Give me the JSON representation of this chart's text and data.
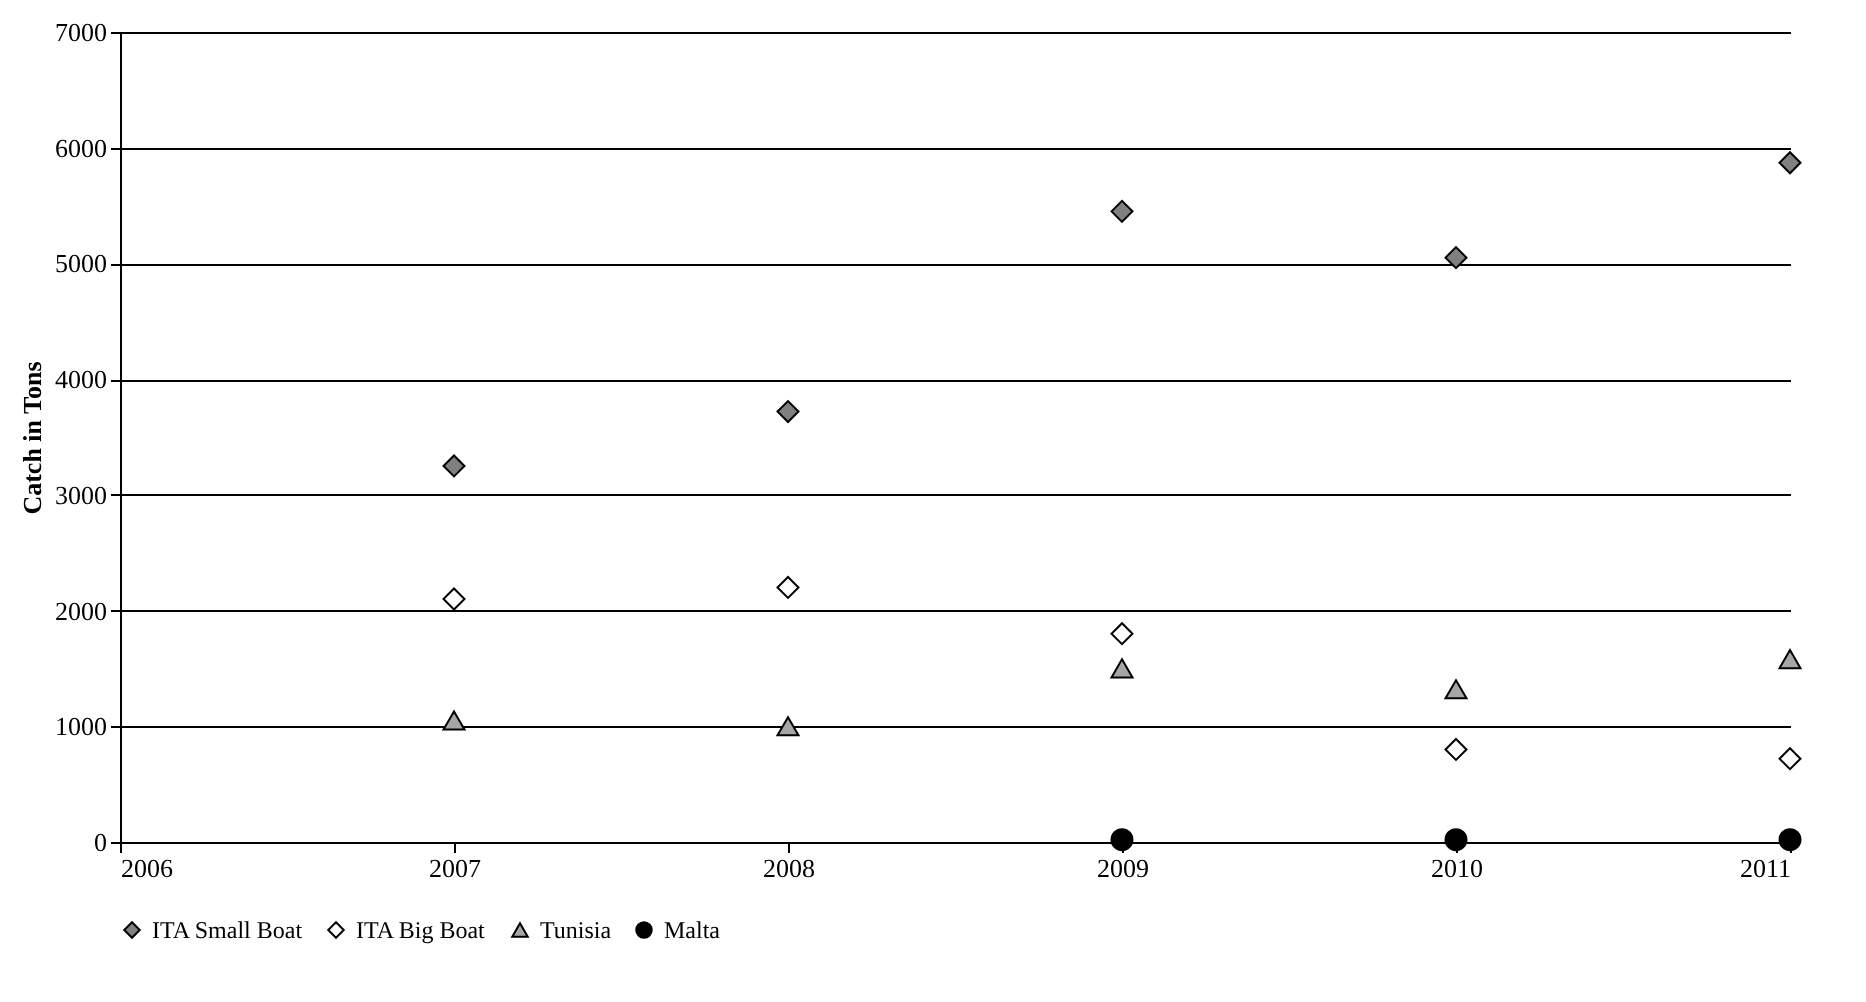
{
  "chart_data": {
    "type": "scatter",
    "ylabel": "Catch in Tons",
    "x": [
      2007,
      2008,
      2009,
      2010,
      2011
    ],
    "series": [
      {
        "name": "ITA Small Boat",
        "color": "#808080",
        "marker": "diamond",
        "values": [
          3250,
          3720,
          5450,
          5050,
          5870
        ]
      },
      {
        "name": "ITA Big Boat",
        "color": "#ffffff",
        "marker": "diamond",
        "values": [
          2100,
          2200,
          1800,
          800,
          720
        ]
      },
      {
        "name": "Tunisia",
        "color": "#a6a6a6",
        "marker": "triangle",
        "values": [
          1050,
          1000,
          1500,
          1320,
          1580
        ]
      },
      {
        "name": "Malta",
        "color": "#000000",
        "marker": "circle",
        "values": [
          null,
          null,
          20,
          20,
          20
        ]
      }
    ],
    "xlim": [
      2006,
      2011
    ],
    "xticks": [
      2006,
      2007,
      2008,
      2009,
      2010,
      2011
    ],
    "ylim": [
      0,
      7000
    ],
    "yticks": [
      0,
      1000,
      2000,
      3000,
      4000,
      5000,
      6000,
      7000
    ],
    "grid": "y",
    "legend": "bottom"
  }
}
